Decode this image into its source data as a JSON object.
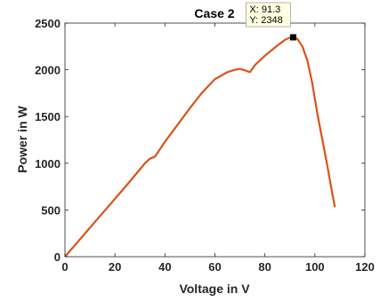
{
  "chart_data": {
    "type": "line",
    "title": "Case 2",
    "xlabel": "Voltage in V",
    "ylabel": "Power in W",
    "xlim": [
      0,
      120
    ],
    "ylim": [
      0,
      2500
    ],
    "xticks": [
      0,
      20,
      40,
      60,
      80,
      100,
      120
    ],
    "yticks": [
      0,
      500,
      1000,
      1500,
      2000,
      2500
    ],
    "grid": false,
    "series": [
      {
        "color": "#d95319",
        "x": [
          0,
          5,
          10,
          15,
          20,
          25,
          30,
          32,
          34,
          36,
          38,
          40,
          45,
          50,
          55,
          60,
          65,
          68,
          70,
          72,
          74,
          76,
          78,
          80,
          85,
          88,
          90,
          91.3,
          93,
          95,
          97,
          99,
          101,
          103,
          105,
          107,
          108
        ],
        "y": [
          0,
          155,
          310,
          465,
          620,
          775,
          935,
          1000,
          1050,
          1070,
          1150,
          1230,
          1410,
          1590,
          1760,
          1900,
          1975,
          2000,
          2010,
          1995,
          1975,
          2050,
          2100,
          2150,
          2260,
          2320,
          2345,
          2348,
          2330,
          2250,
          2100,
          1850,
          1530,
          1250,
          970,
          670,
          530
        ]
      }
    ],
    "datatip": {
      "x_line": "X: 91.3",
      "y_line": "Y: 2348",
      "x": 91.3,
      "y": 2348
    }
  }
}
